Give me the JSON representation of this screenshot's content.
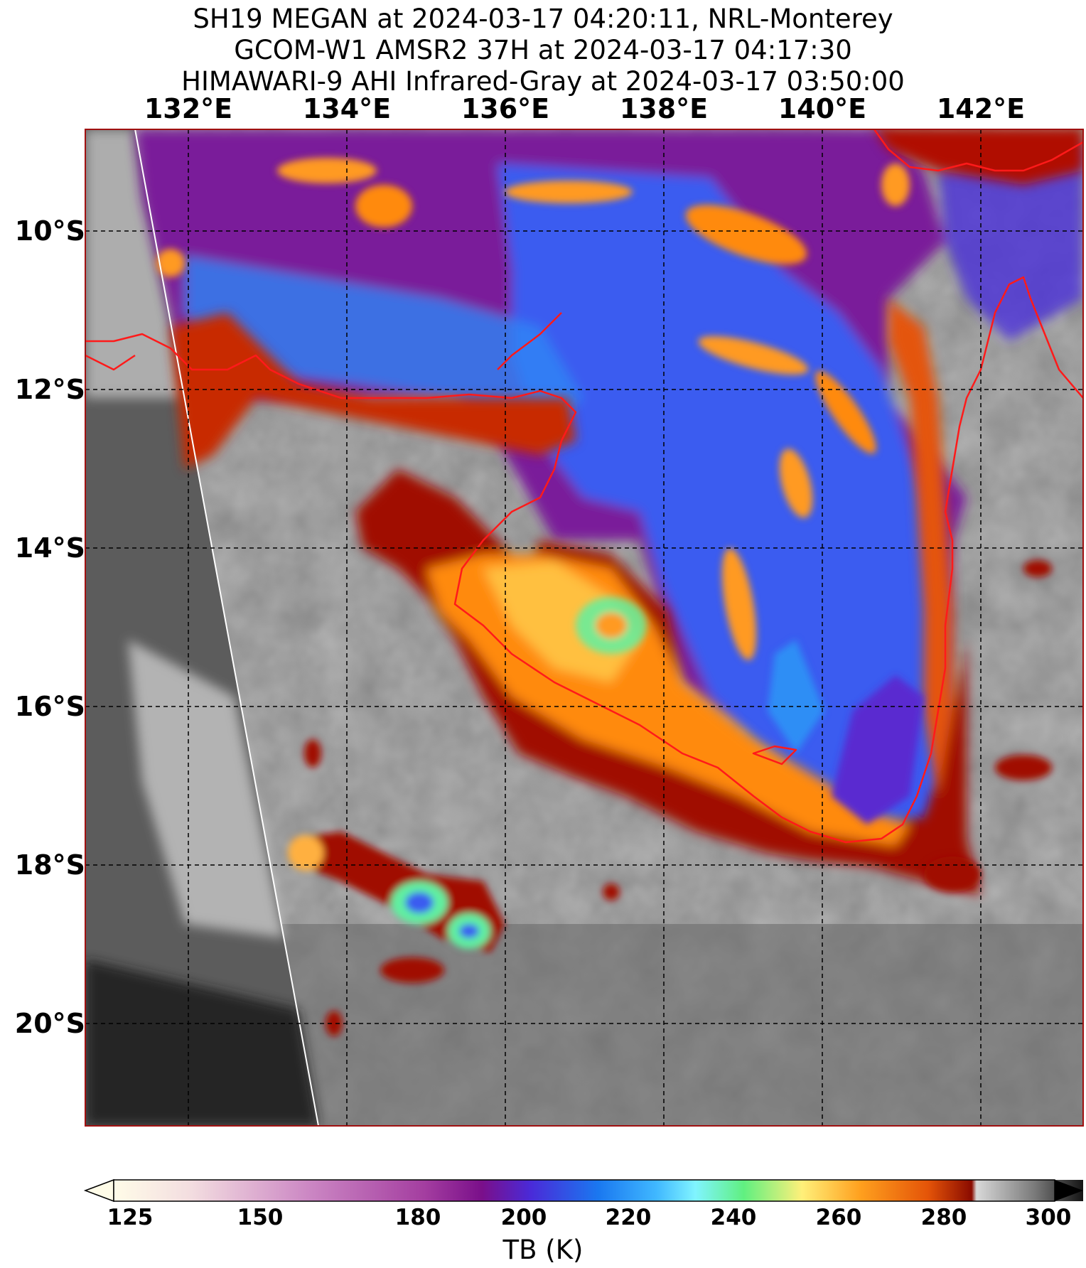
{
  "title": {
    "line1": "SH19 MEGAN at 2024-03-17 04:20:11, NRL-Monterey",
    "line2": "GCOM-W1 AMSR2 37H at 2024-03-17 04:17:30",
    "line3": "HIMAWARI-9 AHI Infrared-Gray at 2024-03-17 03:50:00"
  },
  "map": {
    "lon_labels": [
      "132°E",
      "134°E",
      "136°E",
      "138°E",
      "140°E",
      "142°E"
    ],
    "lat_labels": [
      "10°S",
      "12°S",
      "14°S",
      "16°S",
      "18°S",
      "20°S"
    ],
    "gridlines": "dashed",
    "coastline_color": "#ff1a1a"
  },
  "colorbar": {
    "label": "TB (K)",
    "ticks": [
      "125",
      "150",
      "180",
      "200",
      "220",
      "240",
      "260",
      "280",
      "300"
    ],
    "range": [
      125,
      300
    ],
    "extend": "both"
  }
}
